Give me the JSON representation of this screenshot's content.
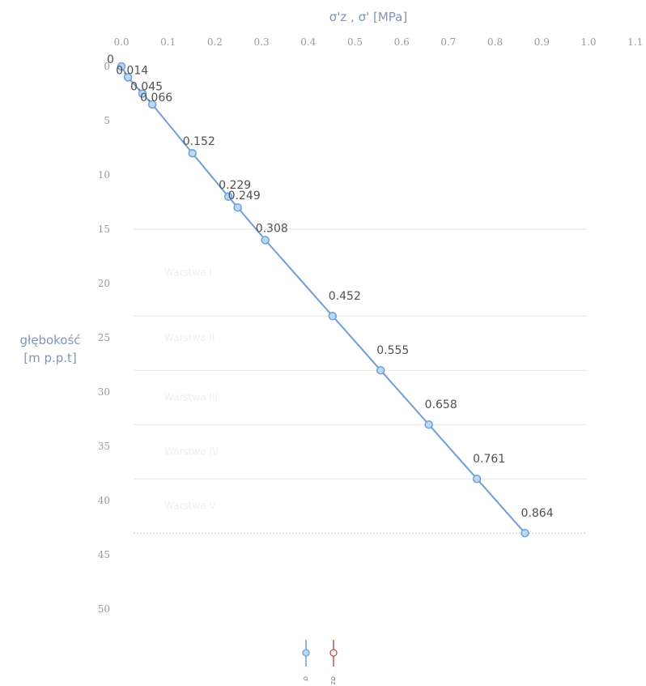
{
  "chart_data": {
    "type": "line",
    "title": "",
    "xlabel": "σ'z , σ' [MPa]",
    "ylabel": "głębokość [m p.p.t]",
    "x_axis_position": "top",
    "y_axis_inverted": true,
    "xlim": [
      0,
      1.1
    ],
    "ylim": [
      0,
      50
    ],
    "x_ticks": [
      "0.0",
      "0.1",
      "0.2",
      "0.3",
      "0.4",
      "0.5",
      "0.6",
      "0.7",
      "0.8",
      "0.9",
      "1.0",
      "1.1"
    ],
    "y_ticks": [
      "0",
      "5",
      "10",
      "15",
      "20",
      "25",
      "30",
      "35",
      "40",
      "45",
      "50"
    ],
    "series": [
      {
        "name": "σ",
        "color": "#6f9fd8",
        "marker_fill": "#b9d8f2",
        "points": [
          {
            "x": 0.0,
            "y": 0,
            "label": "0"
          },
          {
            "x": 0.014,
            "y": 1,
            "label": "0.014"
          },
          {
            "x": 0.045,
            "y": 2.5,
            "label": "0.045"
          },
          {
            "x": 0.066,
            "y": 3.5,
            "label": "0.066"
          },
          {
            "x": 0.152,
            "y": 8,
            "label": "0.152"
          },
          {
            "x": 0.229,
            "y": 12,
            "label": "0.229"
          },
          {
            "x": 0.249,
            "y": 13,
            "label": "0.249"
          },
          {
            "x": 0.308,
            "y": 16,
            "label": "0.308"
          },
          {
            "x": 0.452,
            "y": 23,
            "label": "0.452"
          },
          {
            "x": 0.555,
            "y": 28,
            "label": "0.555"
          },
          {
            "x": 0.658,
            "y": 33,
            "label": "0.658"
          },
          {
            "x": 0.761,
            "y": 38,
            "label": "0.761"
          },
          {
            "x": 0.864,
            "y": 43,
            "label": "0.864"
          }
        ]
      },
      {
        "name": "σz",
        "color": "#c0504d",
        "marker_fill": "#ffffff",
        "points": []
      }
    ],
    "layer_boundaries": [
      15,
      23,
      28,
      33,
      38,
      43
    ],
    "layers": [
      {
        "label": "Warstwa I",
        "depth": 19
      },
      {
        "label": "Warstwa II",
        "depth": 25
      },
      {
        "label": "Warstwa III",
        "depth": 30.5
      },
      {
        "label": "Warstwa IV",
        "depth": 35.5
      },
      {
        "label": "Warstwa V",
        "depth": 40.5
      }
    ],
    "grid": false,
    "legend_position": "bottom"
  }
}
